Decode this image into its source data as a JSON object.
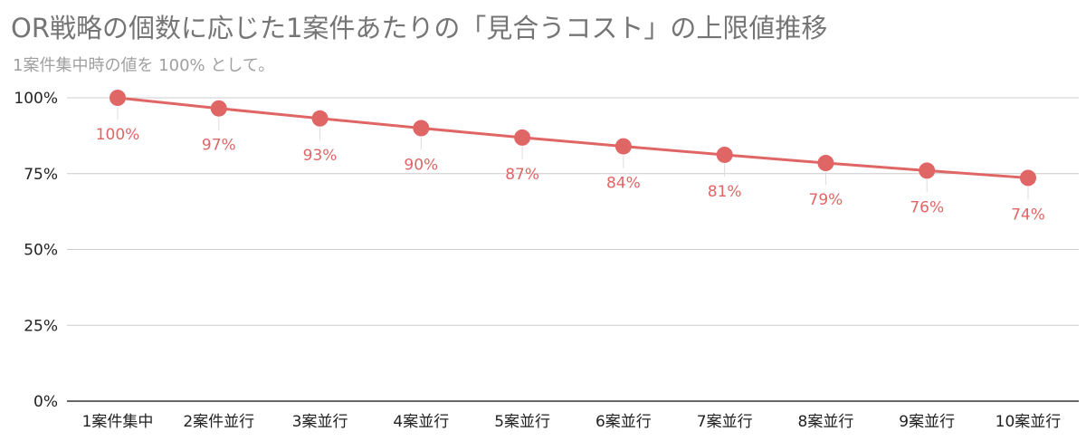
{
  "title": "OR戦略の個数に応じた1案件あたりの「見合うコスト」の上限値推移",
  "subtitle": "1案件集中時の値を 100% として。",
  "colors": {
    "series": "#e06666",
    "grid": "#cccccc",
    "axis": "#333333"
  },
  "chart_data": {
    "type": "line",
    "categories": [
      "1案件集中",
      "2案件並行",
      "3案並行",
      "4案並行",
      "5案並行",
      "6案並行",
      "7案並行",
      "8案並行",
      "9案並行",
      "10案並行"
    ],
    "values": [
      100,
      96.5,
      93.2,
      90,
      86.9,
      84,
      81.2,
      78.5,
      76,
      73.6
    ],
    "data_labels": [
      "100%",
      "97%",
      "93%",
      "90%",
      "87%",
      "84%",
      "81%",
      "79%",
      "76%",
      "74%"
    ],
    "ylim": [
      0,
      100
    ],
    "yticks": [
      0,
      25,
      50,
      75,
      100
    ],
    "ytick_labels": [
      "0%",
      "25%",
      "50%",
      "75%",
      "100%"
    ],
    "grid": true,
    "legend": "none"
  }
}
